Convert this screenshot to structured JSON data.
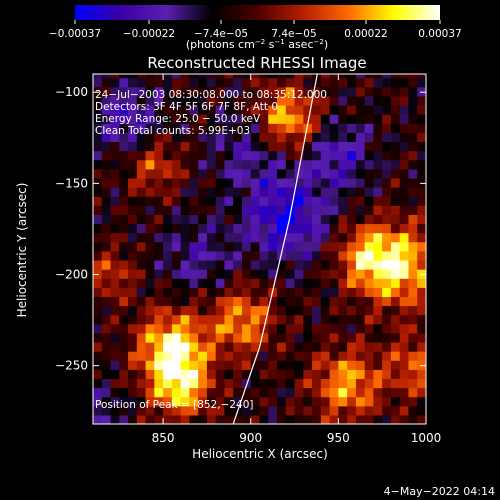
{
  "chart_data": {
    "type": "heatmap",
    "title": "Reconstructed RHESSI Image",
    "xlabel": "Heliocentric X (arcsec)",
    "ylabel": "Heliocentric Y (arcsec)",
    "xlim": [
      810,
      1000
    ],
    "ylim": [
      -282,
      -90
    ],
    "xticks": [
      850,
      900,
      950,
      1000
    ],
    "yticks": [
      -100,
      -150,
      -200,
      -250
    ],
    "xtick_labels": [
      "850",
      "900",
      "950",
      "1000"
    ],
    "ytick_labels": [
      "−100",
      "−150",
      "−200",
      "−250"
    ],
    "colorbar": {
      "range": [
        -0.00037,
        0.00037
      ],
      "ticks": [
        -0.00037,
        -0.00022,
        -7.4e-05,
        7.4e-05,
        0.00022,
        0.00037
      ],
      "tick_labels": [
        "−0.00037",
        "−0.00022",
        "−7.4e−05",
        "7.4e−05",
        "0.00022",
        "0.00037"
      ],
      "label_parts": [
        "(photons cm",
        "−2",
        " s",
        "−1",
        " asec",
        "−2",
        ")"
      ],
      "stops": [
        "#0000ff",
        "#3a00a6",
        "#5a1fb0",
        "#000000",
        "#4d0000",
        "#b51d00",
        "#ff6a00",
        "#ffff00",
        "#ffffff"
      ]
    },
    "annotations": [
      "24−Jul−2003 08:30:08.000 to 08:35:12.000",
      "Detectors: 3F 4F 5F 6F 7F 8F, Att 0",
      "Energy Range: 25.0 − 50.0 keV",
      "Clean    Total counts: 5.99E+03"
    ],
    "peak_label": "Position of Peak = [852,−240]",
    "limb": {
      "x": [
        938,
        922,
        905,
        890
      ],
      "y": [
        -90,
        -170,
        -240,
        -282
      ]
    },
    "blobs": [
      {
        "x": 985,
        "y": -195,
        "v": 0.9,
        "s": 16
      },
      {
        "x": 855,
        "y": -240,
        "v": 1.0,
        "s": 14
      },
      {
        "x": 895,
        "y": -225,
        "v": 0.7,
        "s": 13
      },
      {
        "x": 920,
        "y": -115,
        "v": 0.85,
        "s": 13
      },
      {
        "x": 955,
        "y": -260,
        "v": 0.75,
        "s": 14
      },
      {
        "x": 860,
        "y": -262,
        "v": 0.8,
        "s": 12
      },
      {
        "x": 965,
        "y": -190,
        "v": 0.6,
        "s": 12
      },
      {
        "x": 845,
        "y": -140,
        "v": 0.5,
        "s": 11
      },
      {
        "x": 820,
        "y": -200,
        "v": 0.45,
        "s": 10
      },
      {
        "x": 995,
        "y": -250,
        "v": 0.55,
        "s": 12
      },
      {
        "x": 920,
        "y": -168,
        "v": -0.75,
        "s": 16
      },
      {
        "x": 900,
        "y": -130,
        "v": -0.4,
        "s": 15
      },
      {
        "x": 830,
        "y": -115,
        "v": -0.5,
        "s": 13
      },
      {
        "x": 950,
        "y": -135,
        "v": -0.5,
        "s": 13
      },
      {
        "x": 870,
        "y": -190,
        "v": -0.35,
        "s": 14
      },
      {
        "x": 815,
        "y": -275,
        "v": -0.3,
        "s": 10
      }
    ],
    "footer_date": "4−May−2022 04:14"
  }
}
